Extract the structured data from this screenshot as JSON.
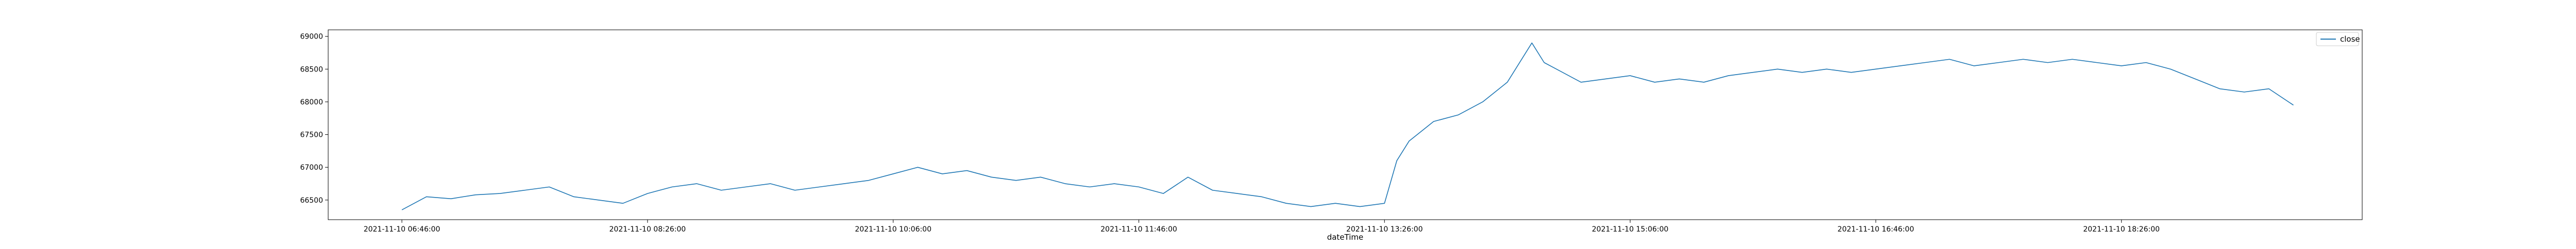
{
  "chart_data": {
    "type": "line",
    "title": "",
    "xlabel": "dateTime",
    "ylabel": "",
    "legend": {
      "entries": [
        "close"
      ],
      "placement": "top-right"
    },
    "grid": false,
    "colors": {
      "series": "#1f77b4",
      "axes": "#000000",
      "background": "#ffffff"
    },
    "xlim": [
      "2021-11-10 06:16:00",
      "2021-11-10 20:04:00"
    ],
    "ylim": [
      66200,
      69100
    ],
    "x_ticks": [
      "2021-11-10 06:46:00",
      "2021-11-10 08:26:00",
      "2021-11-10 10:06:00",
      "2021-11-10 11:46:00",
      "2021-11-10 13:26:00",
      "2021-11-10 15:06:00",
      "2021-11-10 16:46:00",
      "2021-11-10 18:26:00"
    ],
    "y_ticks": [
      66500,
      67000,
      67500,
      68000,
      68500,
      69000
    ],
    "series": [
      {
        "name": "close",
        "x": [
          "2021-11-10 06:46:00",
          "2021-11-10 06:56:00",
          "2021-11-10 07:06:00",
          "2021-11-10 07:16:00",
          "2021-11-10 07:26:00",
          "2021-11-10 07:36:00",
          "2021-11-10 07:46:00",
          "2021-11-10 07:56:00",
          "2021-11-10 08:06:00",
          "2021-11-10 08:16:00",
          "2021-11-10 08:26:00",
          "2021-11-10 08:36:00",
          "2021-11-10 08:46:00",
          "2021-11-10 08:56:00",
          "2021-11-10 09:06:00",
          "2021-11-10 09:16:00",
          "2021-11-10 09:26:00",
          "2021-11-10 09:36:00",
          "2021-11-10 09:46:00",
          "2021-11-10 09:56:00",
          "2021-11-10 10:06:00",
          "2021-11-10 10:16:00",
          "2021-11-10 10:26:00",
          "2021-11-10 10:36:00",
          "2021-11-10 10:46:00",
          "2021-11-10 10:56:00",
          "2021-11-10 11:06:00",
          "2021-11-10 11:16:00",
          "2021-11-10 11:26:00",
          "2021-11-10 11:36:00",
          "2021-11-10 11:46:00",
          "2021-11-10 11:56:00",
          "2021-11-10 12:06:00",
          "2021-11-10 12:16:00",
          "2021-11-10 12:26:00",
          "2021-11-10 12:36:00",
          "2021-11-10 12:46:00",
          "2021-11-10 12:56:00",
          "2021-11-10 13:06:00",
          "2021-11-10 13:16:00",
          "2021-11-10 13:26:00",
          "2021-11-10 13:31:00",
          "2021-11-10 13:36:00",
          "2021-11-10 13:46:00",
          "2021-11-10 13:56:00",
          "2021-11-10 14:06:00",
          "2021-11-10 14:16:00",
          "2021-11-10 14:26:00",
          "2021-11-10 14:31:00",
          "2021-11-10 14:36:00",
          "2021-11-10 14:46:00",
          "2021-11-10 14:56:00",
          "2021-11-10 15:06:00",
          "2021-11-10 15:16:00",
          "2021-11-10 15:26:00",
          "2021-11-10 15:36:00",
          "2021-11-10 15:46:00",
          "2021-11-10 15:56:00",
          "2021-11-10 16:06:00",
          "2021-11-10 16:16:00",
          "2021-11-10 16:26:00",
          "2021-11-10 16:36:00",
          "2021-11-10 16:46:00",
          "2021-11-10 16:56:00",
          "2021-11-10 17:06:00",
          "2021-11-10 17:16:00",
          "2021-11-10 17:26:00",
          "2021-11-10 17:36:00",
          "2021-11-10 17:46:00",
          "2021-11-10 17:56:00",
          "2021-11-10 18:06:00",
          "2021-11-10 18:16:00",
          "2021-11-10 18:26:00",
          "2021-11-10 18:36:00",
          "2021-11-10 18:46:00",
          "2021-11-10 18:56:00",
          "2021-11-10 19:06:00",
          "2021-11-10 19:16:00",
          "2021-11-10 19:26:00",
          "2021-11-10 19:36:00"
        ],
        "values": [
          66350,
          66550,
          66520,
          66580,
          66600,
          66650,
          66700,
          66550,
          66500,
          66450,
          66600,
          66700,
          66750,
          66650,
          66700,
          66750,
          66650,
          66700,
          66750,
          66800,
          66900,
          67000,
          66900,
          66950,
          66850,
          66800,
          66850,
          66750,
          66700,
          66750,
          66700,
          66600,
          66850,
          66650,
          66600,
          66550,
          66450,
          66400,
          66450,
          66400,
          66450,
          67100,
          67400,
          67700,
          67800,
          68000,
          68300,
          68900,
          68600,
          68500,
          68300,
          68350,
          68400,
          68300,
          68350,
          68300,
          68400,
          68450,
          68500,
          68450,
          68500,
          68450,
          68500,
          68550,
          68600,
          68650,
          68550,
          68600,
          68650,
          68600,
          68650,
          68600,
          68550,
          68600,
          68500,
          68350,
          68200,
          68150,
          68200,
          67950
        ]
      }
    ]
  }
}
